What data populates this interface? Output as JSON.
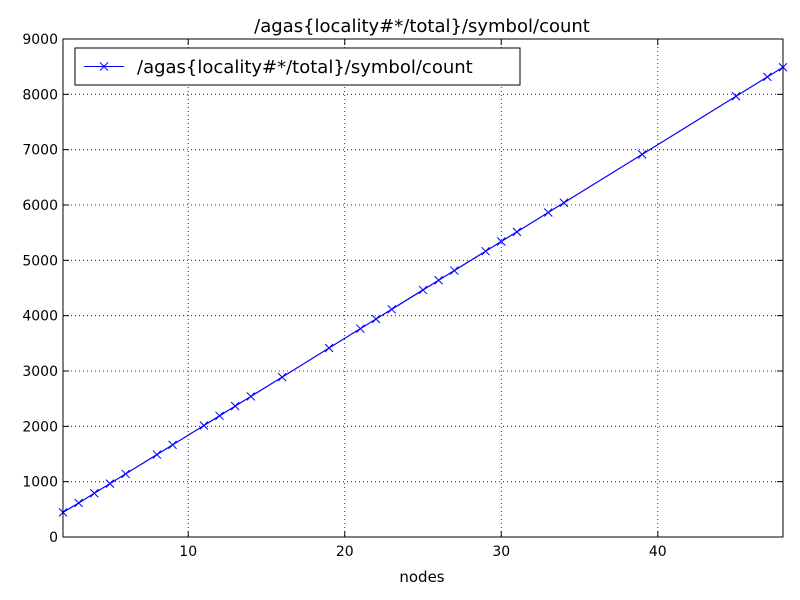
{
  "chart_data": {
    "type": "line",
    "title": "/agas{locality#*/total}/symbol/count",
    "xlabel": "nodes",
    "ylabel": "",
    "xlim": [
      2,
      48
    ],
    "ylim": [
      0,
      9000
    ],
    "xticks": [
      10,
      20,
      30,
      40
    ],
    "yticks": [
      0,
      1000,
      2000,
      3000,
      4000,
      5000,
      6000,
      7000,
      8000,
      9000
    ],
    "grid": true,
    "legend_position": "top-left",
    "series": [
      {
        "name": "/agas{locality#*/total}/symbol/count",
        "color": "#0000ff",
        "marker": "x",
        "x": [
          2,
          3,
          4,
          5,
          6,
          8,
          9,
          11,
          12,
          13,
          14,
          16,
          19,
          21,
          22,
          23,
          25,
          26,
          27,
          29,
          30,
          31,
          33,
          34,
          39,
          45,
          47,
          48
        ],
        "y": [
          445,
          615,
          790,
          965,
          1140,
          1490,
          1665,
          2015,
          2190,
          2365,
          2540,
          2890,
          3415,
          3765,
          3940,
          4115,
          4465,
          4640,
          4815,
          5165,
          5340,
          5515,
          5865,
          6040,
          6915,
          7965,
          8315,
          8490
        ]
      }
    ]
  }
}
